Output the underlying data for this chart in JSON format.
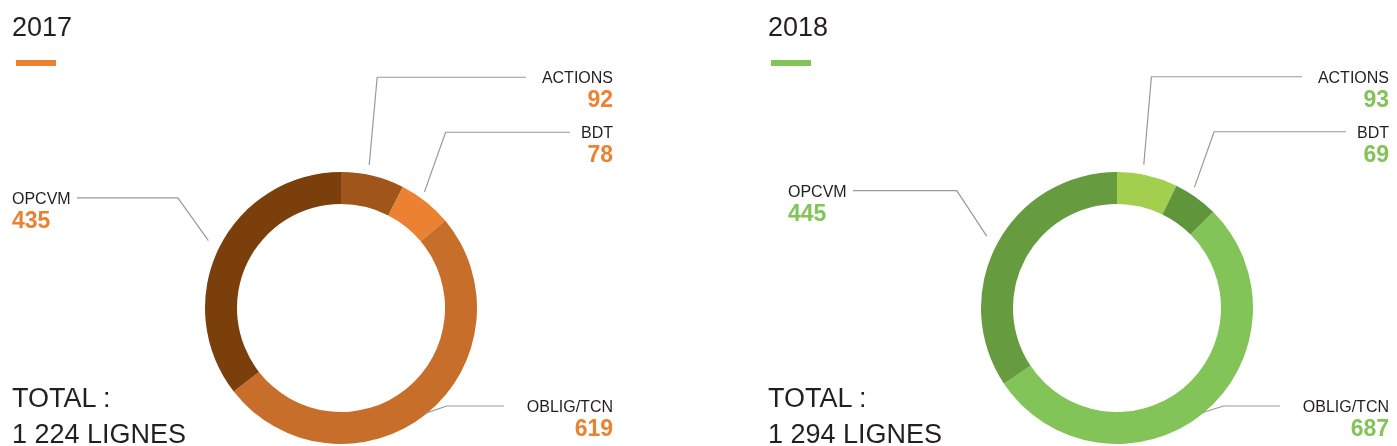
{
  "chart_data": [
    {
      "type": "donut",
      "title": "2017",
      "categories": [
        "ACTIONS",
        "BDT",
        "OBLIG/TCN",
        "OPCVM"
      ],
      "values": [
        92,
        78,
        619,
        435
      ],
      "colors": [
        "#a0561b",
        "#ec8231",
        "#c76e2b",
        "#7a3f0a"
      ],
      "data_labels": true,
      "annotations": [
        "TOTAL :",
        "1 224 LIGNES"
      ]
    },
    {
      "type": "donut",
      "title": "2018",
      "categories": [
        "ACTIONS",
        "BDT",
        "OBLIG/TCN",
        "OPCVM"
      ],
      "values": [
        93,
        69,
        687,
        445
      ],
      "colors": [
        "#a3cf4f",
        "#5f963c",
        "#82c457",
        "#669b40"
      ],
      "data_labels": true,
      "annotations": [
        "TOTAL :",
        "1 294 LIGNES"
      ]
    }
  ]
}
